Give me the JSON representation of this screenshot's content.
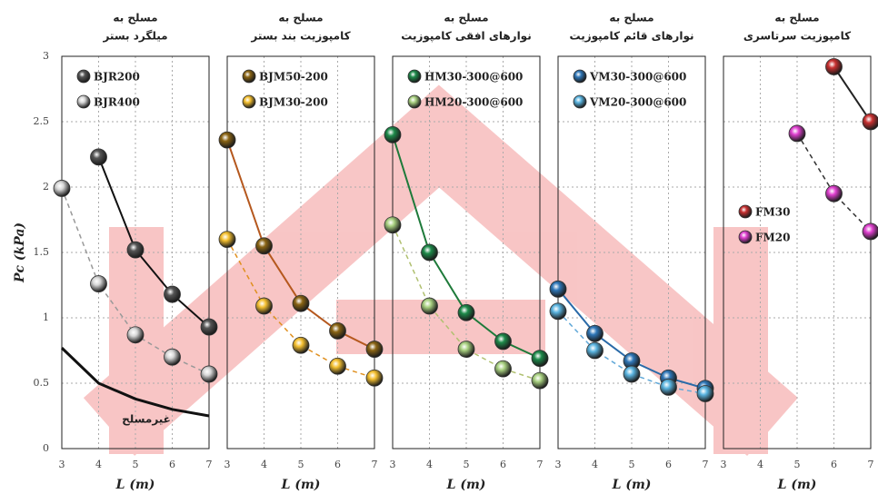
{
  "chart_data": [
    {
      "type": "line",
      "title": [
        "مسلح به",
        "میلگرد بستر"
      ],
      "x": [
        3,
        4,
        5,
        6,
        7
      ],
      "xlim": [
        3,
        7
      ],
      "xticks": [
        3,
        4,
        5,
        6,
        7
      ],
      "ylim": [
        0,
        3
      ],
      "yticks": [
        0,
        0.5,
        1,
        1.5,
        2,
        2.5,
        3
      ],
      "ytick_labels": true,
      "ylabel": "Pc (kPa)",
      "xlabel": "L (m)",
      "grid": true,
      "legend": "top-left",
      "series": [
        {
          "name": "BJR200",
          "color": "#555555",
          "line_color": "#111111",
          "dashed": false,
          "values": [
            null,
            2.23,
            1.52,
            1.18,
            0.93
          ]
        },
        {
          "name": "BJR400",
          "color": "#d8d8d8",
          "line_color": "#999999",
          "dashed": true,
          "values": [
            1.99,
            1.26,
            0.87,
            0.7,
            0.57
          ]
        }
      ],
      "unreinforced": {
        "label": "غیرمسلح",
        "color": "#111111",
        "values": [
          0.77,
          0.5,
          0.38,
          0.3,
          0.25
        ]
      }
    },
    {
      "type": "line",
      "title": [
        "مسلح به",
        "کامپوزیت بند بستر"
      ],
      "x": [
        3,
        4,
        5,
        6,
        7
      ],
      "xlim": [
        3,
        7
      ],
      "xticks": [
        3,
        4,
        5,
        6,
        7
      ],
      "ylim": [
        0,
        3
      ],
      "yticks": [
        0,
        0.5,
        1,
        1.5,
        2,
        2.5,
        3
      ],
      "xlabel": "L (m)",
      "grid": true,
      "legend": "top-left",
      "series": [
        {
          "name": "BJM50-200",
          "color": "#8a6414",
          "line_color": "#b5581e",
          "dashed": false,
          "values": [
            2.36,
            1.55,
            1.11,
            0.9,
            0.76
          ]
        },
        {
          "name": "BJM30-200",
          "color": "#f5c030",
          "line_color": "#e09020",
          "dashed": true,
          "values": [
            1.6,
            1.09,
            0.79,
            0.63,
            0.54
          ]
        }
      ]
    },
    {
      "type": "line",
      "title": [
        "مسلح به",
        "نوارهای افقی کامپوزیت"
      ],
      "x": [
        3,
        4,
        5,
        6,
        7
      ],
      "xlim": [
        3,
        7
      ],
      "xticks": [
        3,
        4,
        5,
        6,
        7
      ],
      "ylim": [
        0,
        3
      ],
      "yticks": [
        0,
        0.5,
        1,
        1.5,
        2,
        2.5,
        3
      ],
      "xlabel": "L (m)",
      "grid": true,
      "legend": "top-left",
      "series": [
        {
          "name": "HM30-300@600",
          "color": "#1e8a4a",
          "line_color": "#1e7a3a",
          "dashed": false,
          "values": [
            2.4,
            1.5,
            1.04,
            0.82,
            0.69
          ]
        },
        {
          "name": "HM20-300@600",
          "color": "#a8d080",
          "line_color": "#b0c070",
          "dashed": true,
          "values": [
            1.71,
            1.09,
            0.76,
            0.61,
            0.52
          ]
        }
      ]
    },
    {
      "type": "line",
      "title": [
        "مسلح به",
        "نوارهای قائم کامپوزیت"
      ],
      "x": [
        3,
        4,
        5,
        6,
        7
      ],
      "xlim": [
        3,
        7
      ],
      "xticks": [
        3,
        4,
        5,
        6,
        7
      ],
      "ylim": [
        0,
        3
      ],
      "yticks": [
        0,
        0.5,
        1,
        1.5,
        2,
        2.5,
        3
      ],
      "xlabel": "L (m)",
      "grid": true,
      "legend": "top-left",
      "series": [
        {
          "name": "VM30-300@600",
          "color": "#2f77b8",
          "line_color": "#2a6aa8",
          "dashed": false,
          "values": [
            1.22,
            0.88,
            0.67,
            0.54,
            0.46
          ]
        },
        {
          "name": "VM20-300@600",
          "color": "#5ab4e0",
          "line_color": "#60a8d8",
          "dashed": true,
          "values": [
            1.05,
            0.75,
            0.57,
            0.47,
            0.42
          ]
        }
      ]
    },
    {
      "type": "line",
      "title": [
        "مسلح به",
        "کامپوزیت سرتاسری"
      ],
      "x": [
        3,
        4,
        5,
        6,
        7
      ],
      "xlim": [
        3,
        7
      ],
      "xticks": [
        3,
        4,
        5,
        6,
        7
      ],
      "ylim": [
        0,
        3
      ],
      "yticks": [
        0,
        0.5,
        1,
        1.5,
        2,
        2.5,
        3
      ],
      "xlabel": "L (m)",
      "grid": true,
      "legend": "middle-left",
      "series": [
        {
          "name": "FM30",
          "color": "#c83030",
          "line_color": "#222222",
          "dashed": false,
          "values": [
            null,
            null,
            null,
            2.92,
            2.5
          ]
        },
        {
          "name": "FM20",
          "color": "#e040d0",
          "line_color": "#333333",
          "dashed": true,
          "values": [
            null,
            null,
            2.41,
            1.95,
            1.66
          ]
        }
      ]
    }
  ]
}
